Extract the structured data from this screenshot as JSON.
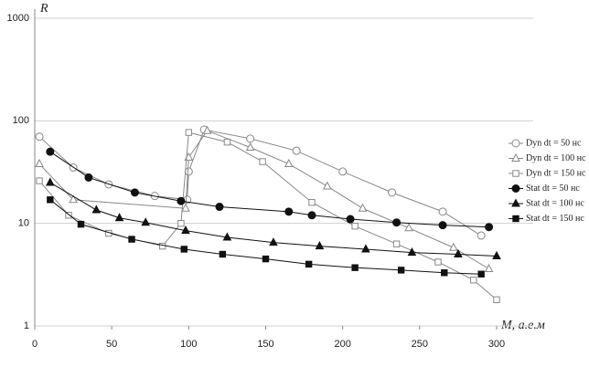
{
  "chart_data": {
    "type": "scatter",
    "log_y": true,
    "y_label": "R",
    "x_label": "M, а.е.м",
    "xlim": [
      0,
      300
    ],
    "xticks": [
      0,
      50,
      100,
      150,
      200,
      250,
      300
    ],
    "ylim": [
      1,
      1000
    ],
    "yticks": [
      1,
      10,
      100,
      1000
    ],
    "grid": true,
    "series": [
      {
        "name": "Dyn dt = 50 нс",
        "color": "#888888",
        "marker": "circle",
        "filled": false,
        "x": [
          3,
          25,
          48,
          78,
          99,
          100,
          110,
          140,
          170,
          200,
          232,
          265,
          290
        ],
        "values": [
          70,
          35,
          24,
          18.5,
          17,
          32,
          82,
          67,
          51,
          32,
          20,
          13,
          7.6
        ]
      },
      {
        "name": "Dyn dt = 100 нс",
        "color": "#888888",
        "marker": "triangle",
        "filled": false,
        "x": [
          3,
          25,
          98,
          100,
          112,
          140,
          165,
          190,
          213,
          243,
          272,
          295
        ],
        "values": [
          38,
          17,
          14,
          44,
          80,
          55,
          38,
          23,
          14,
          9,
          5.8,
          3.6
        ]
      },
      {
        "name": "Dyn dt = 150 нс",
        "color": "#888888",
        "marker": "square",
        "filled": false,
        "x": [
          3,
          22,
          48,
          83,
          95,
          100,
          125,
          148,
          180,
          208,
          235,
          262,
          285,
          300
        ],
        "values": [
          26,
          12,
          8,
          6,
          10,
          77,
          62,
          40,
          16,
          9.4,
          6.3,
          4.2,
          2.8,
          1.8
        ]
      },
      {
        "name": "Stat dt = 50 нс",
        "color": "#111111",
        "marker": "circle",
        "filled": true,
        "x": [
          10,
          35,
          65,
          95,
          120,
          165,
          180,
          205,
          235,
          265,
          295
        ],
        "values": [
          50,
          28,
          20,
          16.5,
          14.5,
          13,
          12,
          11,
          10.2,
          9.6,
          9.2
        ]
      },
      {
        "name": "Stat dt = 100 нс",
        "color": "#111111",
        "marker": "triangle",
        "filled": true,
        "x": [
          10,
          40,
          55,
          72,
          98,
          125,
          155,
          185,
          215,
          245,
          275,
          300
        ],
        "values": [
          25,
          13.5,
          11.3,
          10.2,
          8.5,
          7.3,
          6.5,
          6,
          5.6,
          5.2,
          5,
          4.8
        ]
      },
      {
        "name": "Stat dt = 150 нс",
        "color": "#111111",
        "marker": "square",
        "filled": true,
        "x": [
          10,
          30,
          63,
          97,
          122,
          150,
          178,
          208,
          238,
          266,
          290
        ],
        "values": [
          17,
          9.8,
          7,
          5.6,
          5,
          4.5,
          4,
          3.7,
          3.5,
          3.3,
          3.2
        ]
      }
    ]
  }
}
